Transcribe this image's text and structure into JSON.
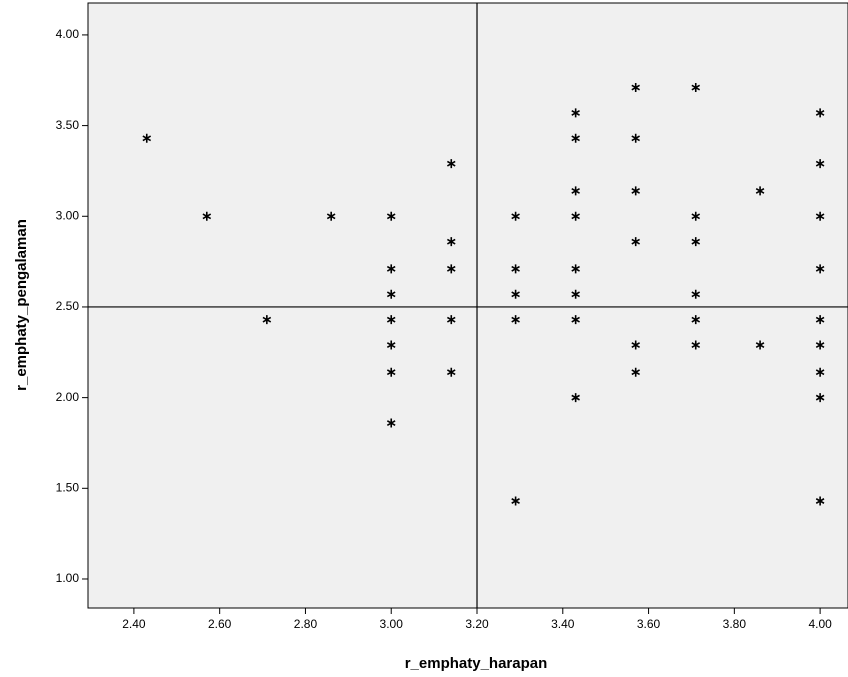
{
  "chart_data": {
    "type": "scatter",
    "x_label": "r_emphaty_harapan",
    "y_label": "r_emphaty_pengalaman",
    "x": [
      2.43,
      2.57,
      2.71,
      2.86,
      3.0,
      3.0,
      3.0,
      3.0,
      3.0,
      3.0,
      3.0,
      3.14,
      3.14,
      3.14,
      3.14,
      3.14,
      3.29,
      3.29,
      3.29,
      3.29,
      3.29,
      3.43,
      3.43,
      3.43,
      3.43,
      3.43,
      3.43,
      3.43,
      3.43,
      3.57,
      3.57,
      3.57,
      3.57,
      3.57,
      3.57,
      3.71,
      3.71,
      3.71,
      3.71,
      3.71,
      3.71,
      3.86,
      3.86,
      4.0,
      4.0,
      4.0,
      4.0,
      4.0,
      4.0,
      4.0,
      4.0,
      4.0
    ],
    "values": [
      3.43,
      3.0,
      2.43,
      3.0,
      3.0,
      2.71,
      2.57,
      2.43,
      2.29,
      2.14,
      1.86,
      3.29,
      2.86,
      2.71,
      2.43,
      2.14,
      3.0,
      2.71,
      2.57,
      2.43,
      1.43,
      3.57,
      3.43,
      3.14,
      3.0,
      2.71,
      2.57,
      2.43,
      2.0,
      3.71,
      3.43,
      3.14,
      2.86,
      2.29,
      2.14,
      3.71,
      3.0,
      2.86,
      2.57,
      2.43,
      2.29,
      3.14,
      2.29,
      3.57,
      3.29,
      3.0,
      2.71,
      2.43,
      2.29,
      2.14,
      2.0,
      1.43
    ],
    "color": "#000000",
    "x_reference": 3.2,
    "y_reference": 2.5,
    "xlim": [
      2.293,
      4.065
    ],
    "ylim": [
      0.84,
      4.176
    ],
    "xticks": [
      {
        "value": 2.4,
        "label": "2.40"
      },
      {
        "value": 2.6,
        "label": "2.60"
      },
      {
        "value": 2.8,
        "label": "2.80"
      },
      {
        "value": 3.0,
        "label": "3.00"
      },
      {
        "value": 3.2,
        "label": "3.20"
      },
      {
        "value": 3.4,
        "label": "3.40"
      },
      {
        "value": 3.6,
        "label": "3.60"
      },
      {
        "value": 3.8,
        "label": "3.80"
      },
      {
        "value": 4.0,
        "label": "4.00"
      }
    ],
    "yticks": [
      {
        "value": 1.0,
        "label": "1.00"
      },
      {
        "value": 1.5,
        "label": "1.50"
      },
      {
        "value": 2.0,
        "label": "2.00"
      },
      {
        "value": 2.5,
        "label": "2.50"
      },
      {
        "value": 3.0,
        "label": "3.00"
      },
      {
        "value": 3.5,
        "label": "3.50"
      },
      {
        "value": 4.0,
        "label": "4.00"
      }
    ]
  }
}
